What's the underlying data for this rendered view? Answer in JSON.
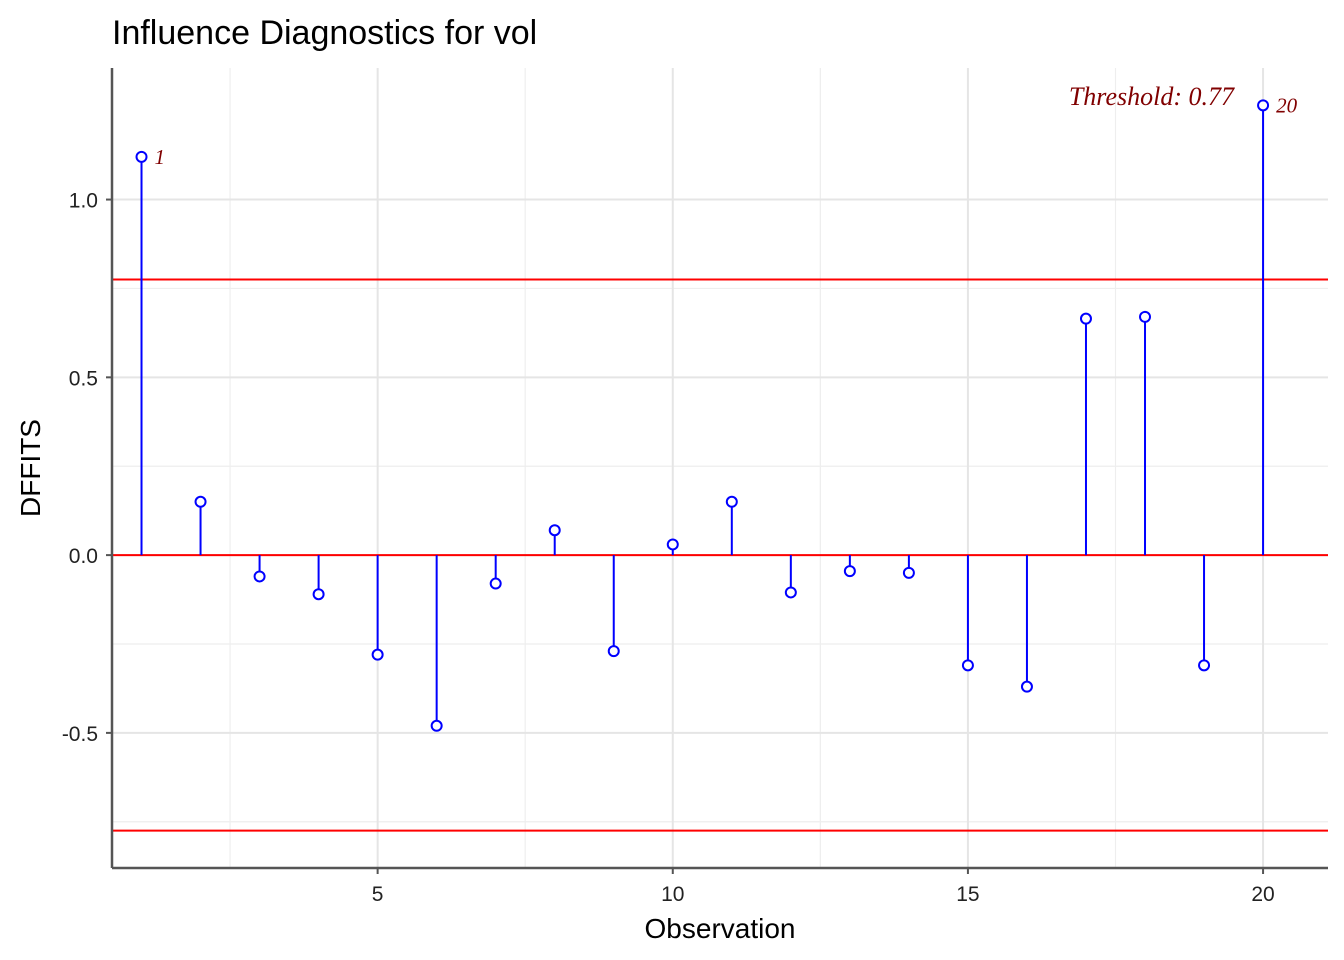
{
  "chart_data": {
    "type": "lollipop",
    "title": "Influence Diagnostics for vol",
    "xlabel": "Observation",
    "ylabel": "DFFITS",
    "xlim": [
      0.5,
      21.1
    ],
    "ylim": [
      -0.88,
      1.37
    ],
    "x_ticks": [
      5,
      10,
      15,
      20
    ],
    "x_tick_labels": [
      "5",
      "10",
      "15",
      "20"
    ],
    "y_ticks": [
      -0.5,
      0.0,
      0.5,
      1.0
    ],
    "y_tick_labels": [
      "-0.5",
      "0.0",
      "0.5",
      "1.0"
    ],
    "x_minor_ticks": [
      2.5,
      7.5,
      12.5,
      17.5
    ],
    "y_minor_ticks": [
      -0.75,
      -0.25,
      0.25,
      0.75
    ],
    "grid": true,
    "x": [
      1,
      2,
      3,
      4,
      5,
      6,
      7,
      8,
      9,
      10,
      11,
      12,
      13,
      14,
      15,
      16,
      17,
      18,
      19,
      20
    ],
    "values": [
      1.12,
      0.15,
      -0.06,
      -0.11,
      -0.28,
      -0.48,
      -0.08,
      0.07,
      -0.27,
      0.03,
      0.15,
      -0.105,
      -0.045,
      -0.05,
      -0.31,
      -0.37,
      0.665,
      0.67,
      -0.31,
      1.265
    ],
    "threshold": 0.775,
    "threshold_label": "Threshold: 0.77",
    "reference_line": 0,
    "labeled_points": [
      {
        "x": 1,
        "label": "1"
      },
      {
        "x": 20,
        "label": "20"
      }
    ],
    "colors": {
      "stems": "#0000FF",
      "threshold_lines": "#FF0000",
      "labels": "#800000",
      "grid": "#E5E5E5",
      "axis": "#555555"
    }
  }
}
